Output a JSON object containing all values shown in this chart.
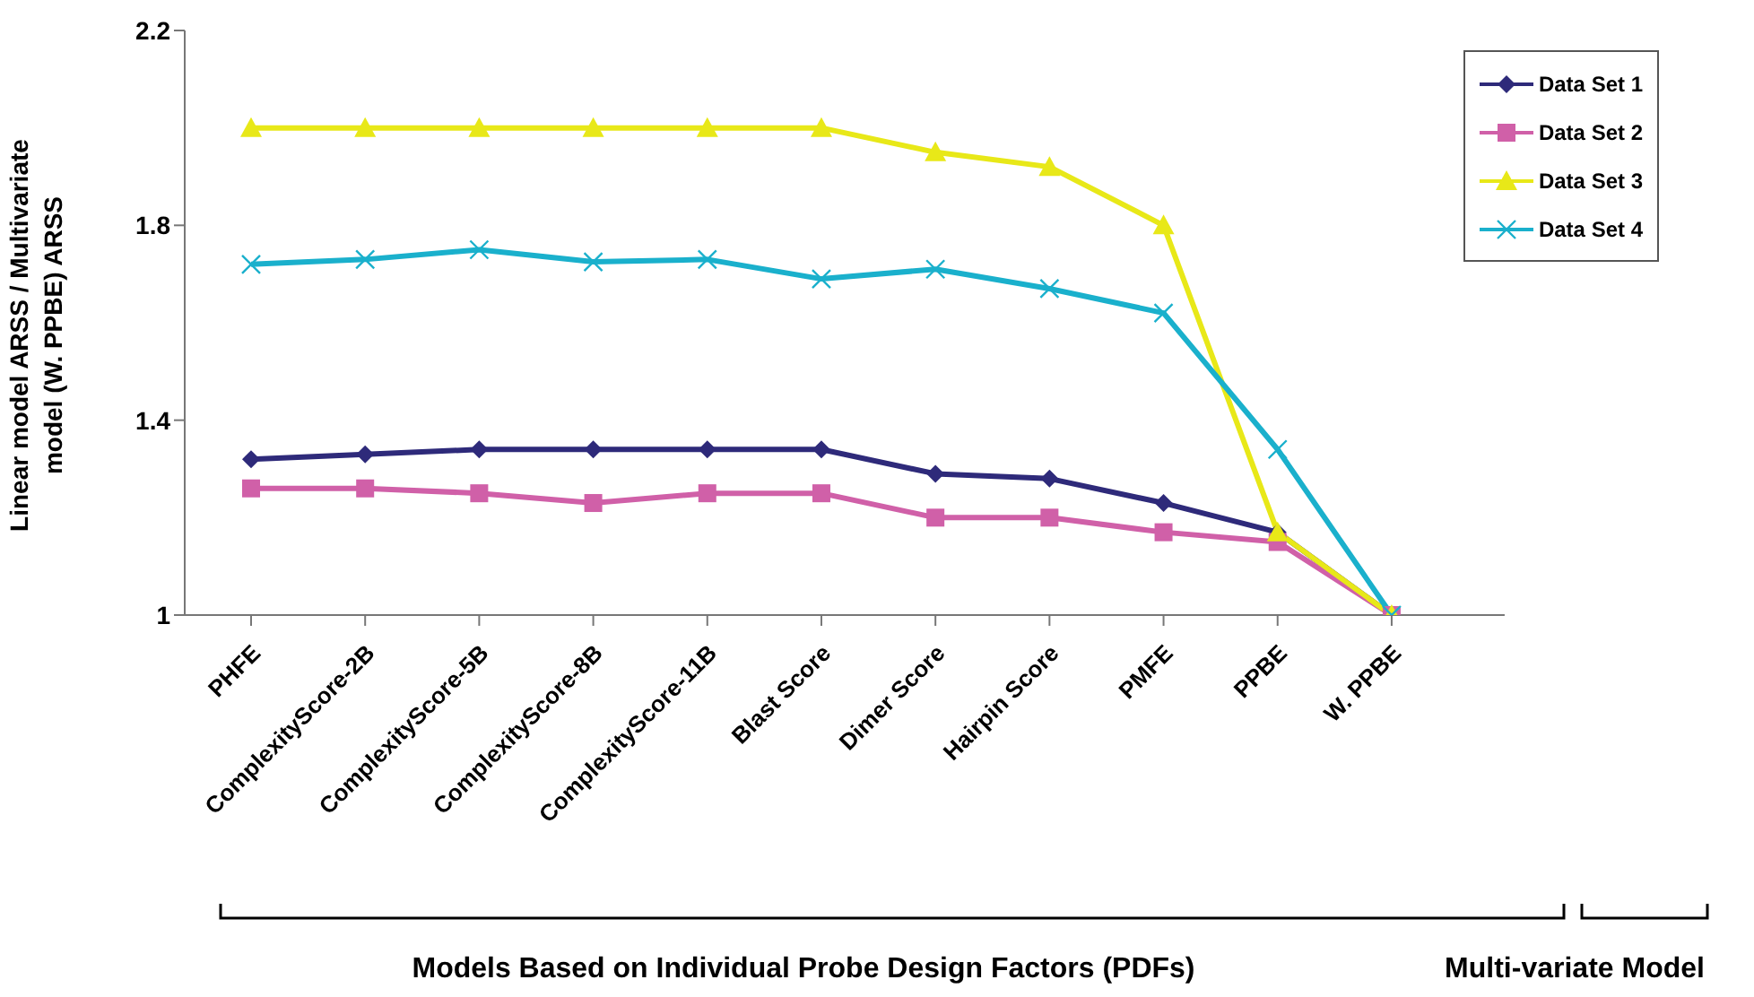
{
  "chart_data": {
    "type": "line",
    "ylabel": "Linear model ARSS / Multivariate model (W. PPBE) ARSS",
    "categories": [
      "PHFE",
      "ComplexityScore-2B",
      "ComplexityScore-5B",
      "ComplexityScore-8B",
      "ComplexityScore-11B",
      "Blast Score",
      "Dimer Score",
      "Hairpin Score",
      "PMFE",
      "PPBE",
      "W. PPBE"
    ],
    "series": [
      {
        "name": "Data Set 1",
        "color": "#2e2a7a",
        "marker": "diamond",
        "values": [
          1.32,
          1.33,
          1.34,
          1.34,
          1.34,
          1.34,
          1.29,
          1.28,
          1.23,
          1.17,
          1.0
        ]
      },
      {
        "name": "Data Set 2",
        "color": "#d060a8",
        "marker": "square",
        "values": [
          1.26,
          1.26,
          1.25,
          1.23,
          1.25,
          1.25,
          1.2,
          1.2,
          1.17,
          1.15,
          1.0
        ]
      },
      {
        "name": "Data Set 3",
        "color": "#e8e818",
        "marker": "triangle",
        "values": [
          2.0,
          2.0,
          2.0,
          2.0,
          2.0,
          2.0,
          1.95,
          1.92,
          1.8,
          1.17,
          1.0
        ]
      },
      {
        "name": "Data Set 4",
        "color": "#1ab0cc",
        "marker": "cross",
        "values": [
          1.72,
          1.73,
          1.75,
          1.725,
          1.73,
          1.69,
          1.71,
          1.67,
          1.62,
          1.34,
          1.0
        ]
      }
    ],
    "ylim": [
      1,
      2.2
    ],
    "yticks": [
      1,
      1.4,
      1.8,
      2.2
    ],
    "grid": false,
    "legend": "top right",
    "line_style": "solid",
    "annotations": [
      "Models Based on Individual Probe Design Factors (PDFs)",
      "Multi-variate Model"
    ]
  }
}
